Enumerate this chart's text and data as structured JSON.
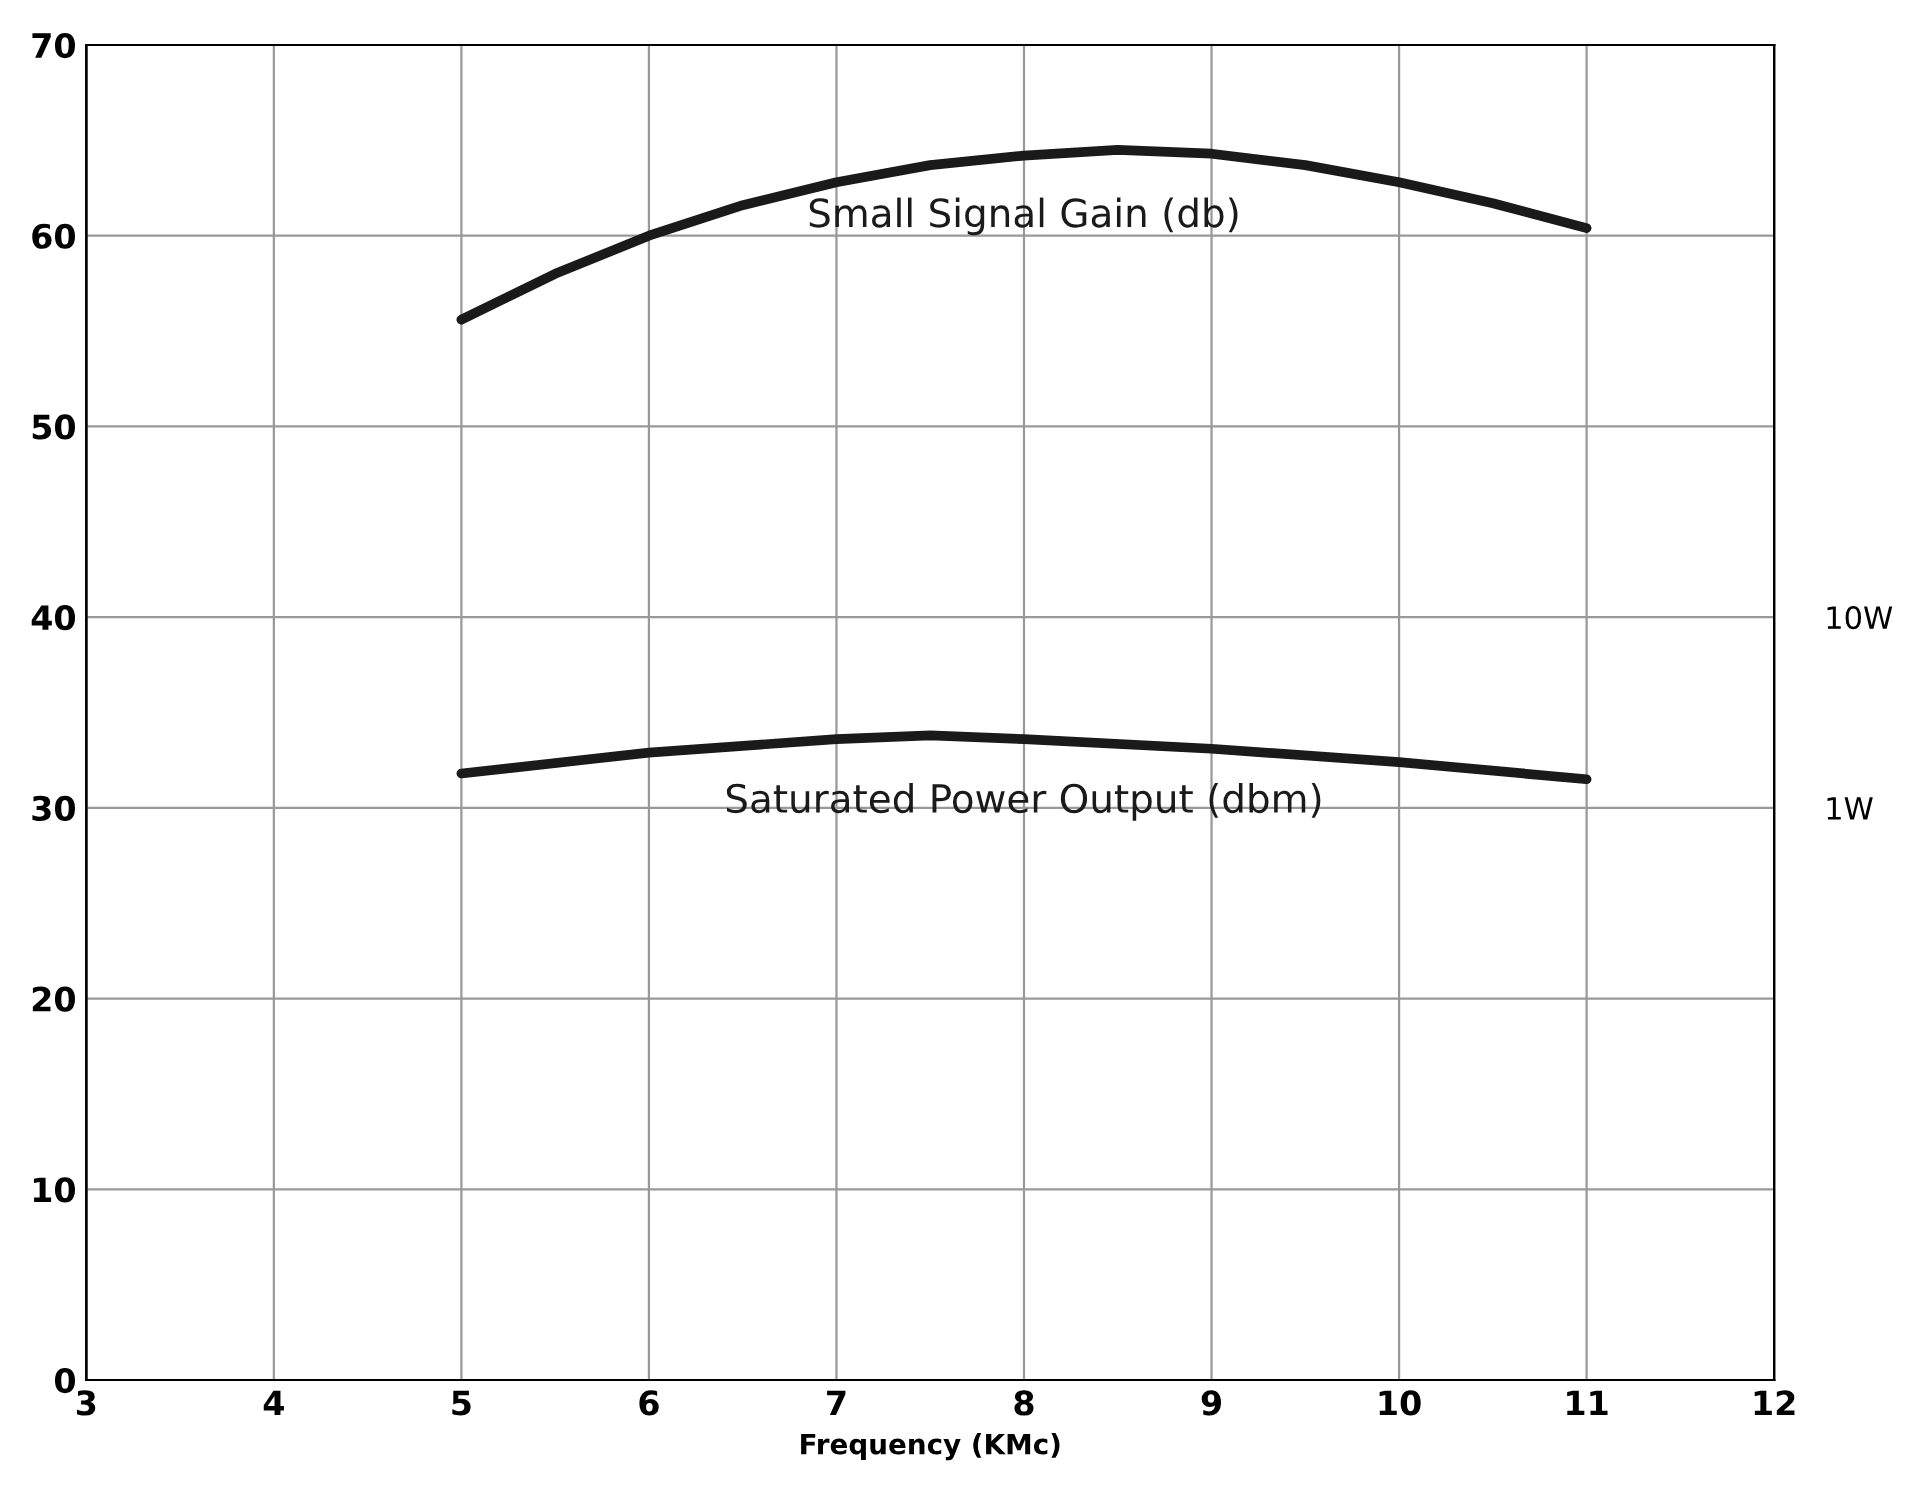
{
  "chart_data": {
    "type": "line",
    "xlabel": "Frequency (KMc)",
    "xlim": [
      3,
      12
    ],
    "xticks": [
      3,
      4,
      5,
      6,
      7,
      8,
      9,
      10,
      11,
      12
    ],
    "ylim": [
      0,
      70
    ],
    "yticks": [
      0,
      10,
      20,
      30,
      40,
      50,
      60,
      70
    ],
    "y2lim": [
      0.001,
      10000
    ],
    "y2ticks": [
      {
        "value": 1,
        "label": "1W"
      },
      {
        "value": 10,
        "label": "10W"
      }
    ],
    "log": "y2",
    "grid": true,
    "legend": false,
    "marker": "none",
    "line_style": "solid",
    "series": [
      {
        "name": "Small Signal Gain (db)",
        "color": "#1a1a1a",
        "x": [
          5,
          5.5,
          6,
          6.5,
          7,
          7.5,
          8,
          8.5,
          9,
          9.5,
          10,
          10.5,
          11
        ],
        "values": [
          55.6,
          58,
          60,
          61.6,
          62.8,
          63.7,
          64.2,
          64.5,
          64.3,
          63.7,
          62.8,
          61.7,
          60.4
        ]
      },
      {
        "name": "Saturated Power Output (dbm)",
        "color": "#1a1a1a",
        "x": [
          5,
          6,
          7,
          7.5,
          8,
          9,
          10,
          11
        ],
        "values": [
          31.8,
          32.9,
          33.6,
          33.8,
          33.6,
          33.1,
          32.4,
          31.5
        ]
      }
    ]
  }
}
